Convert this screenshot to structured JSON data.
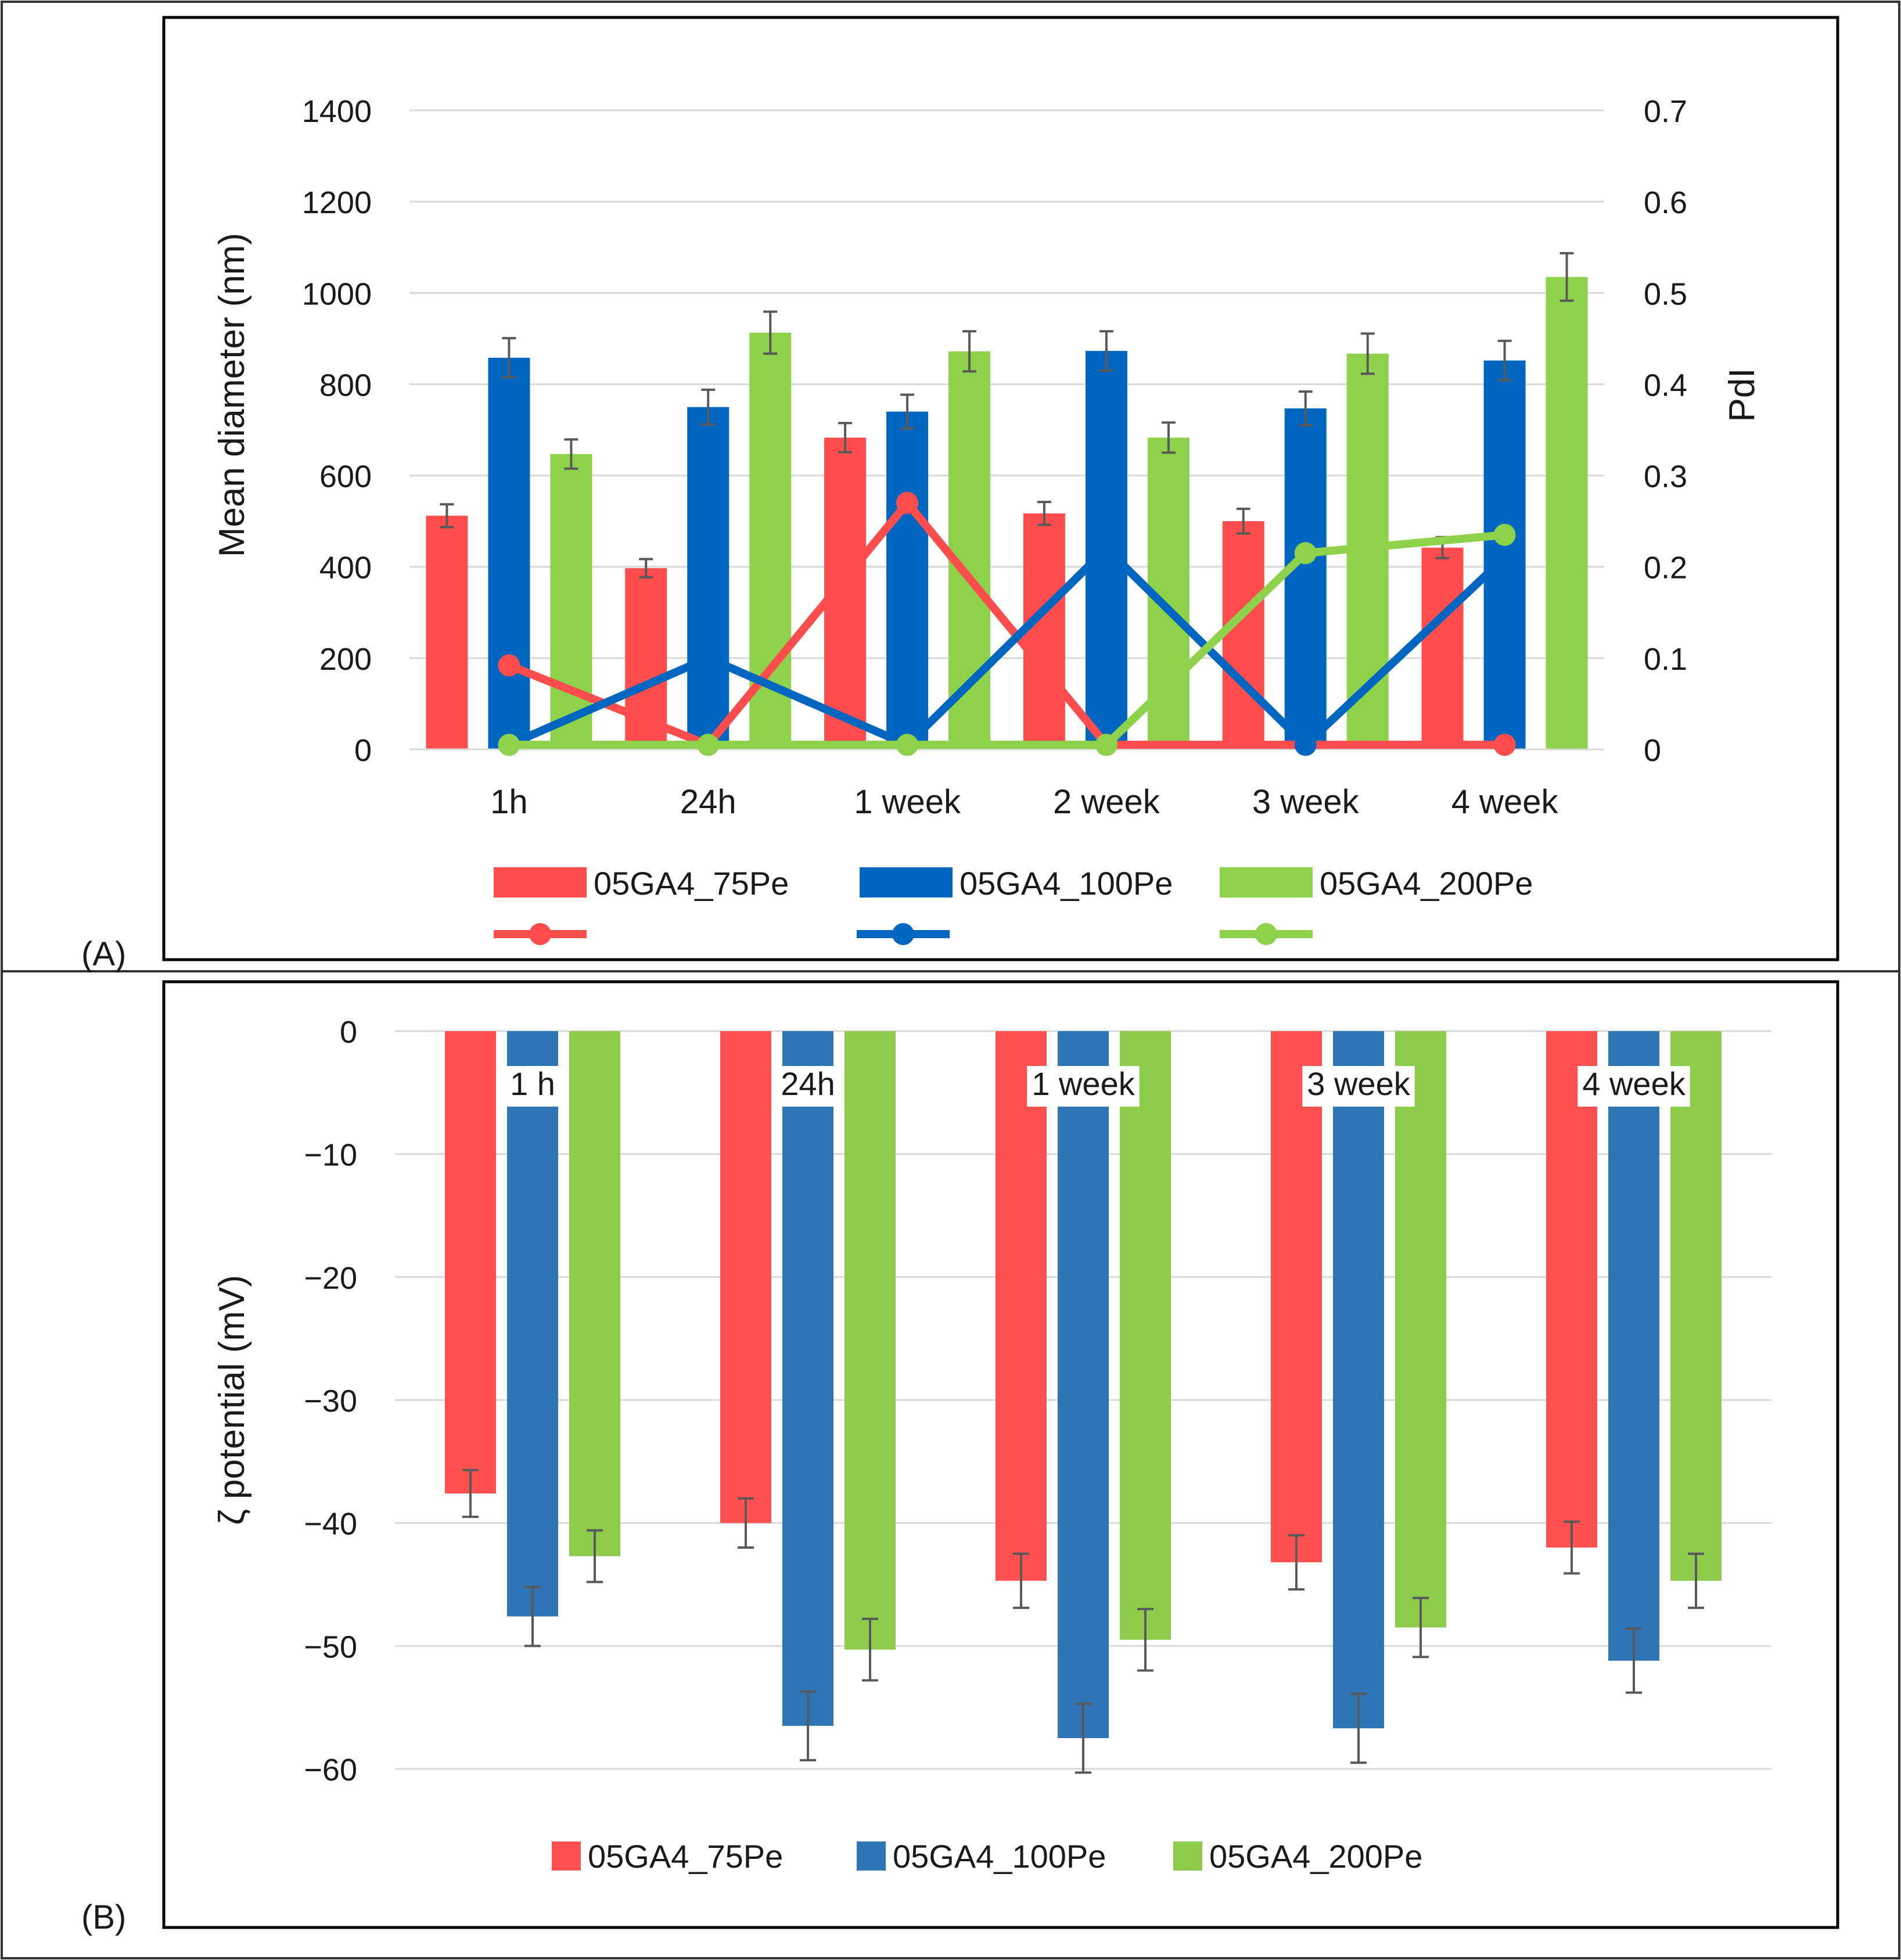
{
  "panels": {
    "a_label": "(A)",
    "b_label": "(B)"
  },
  "chart_data": [
    {
      "type": "bar",
      "panel": "A",
      "categories": [
        "1h",
        "24h",
        "1 week",
        "2 week",
        "3 week",
        "4 week"
      ],
      "ylabel": "Mean diameter (nm)",
      "y2label": "PdI",
      "ylim": [
        0,
        1400
      ],
      "yticks": [
        0,
        200,
        400,
        600,
        800,
        1000,
        1200,
        1400
      ],
      "y2lim": [
        0,
        0.7
      ],
      "y2ticks": [
        "0",
        "0.1",
        "0.2",
        "0.3",
        "0.4",
        "0.5",
        "0.6",
        "0.7"
      ],
      "grid": true,
      "legend_position": "bottom",
      "series": [
        {
          "name": "05GA4_75Pe",
          "color": "#ff4d4d",
          "values": [
            512,
            397,
            683,
            517,
            500,
            442
          ],
          "errors": [
            25,
            20,
            32,
            25,
            27,
            23
          ]
        },
        {
          "name": "05GA4_100Pe",
          "color": "#0066c0",
          "values": [
            858,
            750,
            740,
            873,
            747,
            852
          ],
          "errors": [
            43,
            38,
            37,
            43,
            37,
            43
          ]
        },
        {
          "name": "05GA4_200Pe",
          "color": "#8ed14a",
          "values": [
            647,
            913,
            872,
            683,
            867,
            1035
          ],
          "errors": [
            32,
            46,
            44,
            33,
            44,
            52
          ]
        }
      ],
      "line_series": [
        {
          "color": "#ff4d4d",
          "values": [
            0.092,
            0.005,
            0.27,
            0.005,
            0.005,
            0.005
          ]
        },
        {
          "color": "#0066c0",
          "values": [
            0.005,
            0.1,
            0.005,
            0.22,
            0.005,
            0.21
          ]
        },
        {
          "color": "#8ed14a",
          "values": [
            0.005,
            0.005,
            0.005,
            0.005,
            0.215,
            0.235
          ]
        }
      ]
    },
    {
      "type": "bar",
      "panel": "B",
      "categories": [
        "1 h",
        "24h",
        "1 week",
        "3 week",
        "4 week"
      ],
      "ylabel": "ζ  potential (mV)",
      "ylim": [
        -60,
        0
      ],
      "yticks": [
        "0",
        "−10",
        "−20",
        "−30",
        "−40",
        "−50",
        "−60"
      ],
      "grid": true,
      "legend_position": "bottom",
      "series": [
        {
          "name": "05GA4_75Pe",
          "color": "#ff5050",
          "values": [
            -37.6,
            -40.0,
            -44.7,
            -43.2,
            -42.0
          ],
          "errors": [
            1.9,
            2.0,
            2.2,
            2.2,
            2.1
          ]
        },
        {
          "name": "05GA4_100Pe",
          "color": "#2e75b6",
          "values": [
            -47.6,
            -56.5,
            -57.5,
            -56.7,
            -51.2
          ],
          "errors": [
            2.4,
            2.8,
            2.8,
            2.8,
            2.6
          ]
        },
        {
          "name": "05GA4_200Pe",
          "color": "#8ccc4a",
          "values": [
            -42.7,
            -50.3,
            -49.5,
            -48.5,
            -44.7
          ],
          "errors": [
            2.1,
            2.5,
            2.5,
            2.4,
            2.2
          ]
        }
      ]
    }
  ]
}
